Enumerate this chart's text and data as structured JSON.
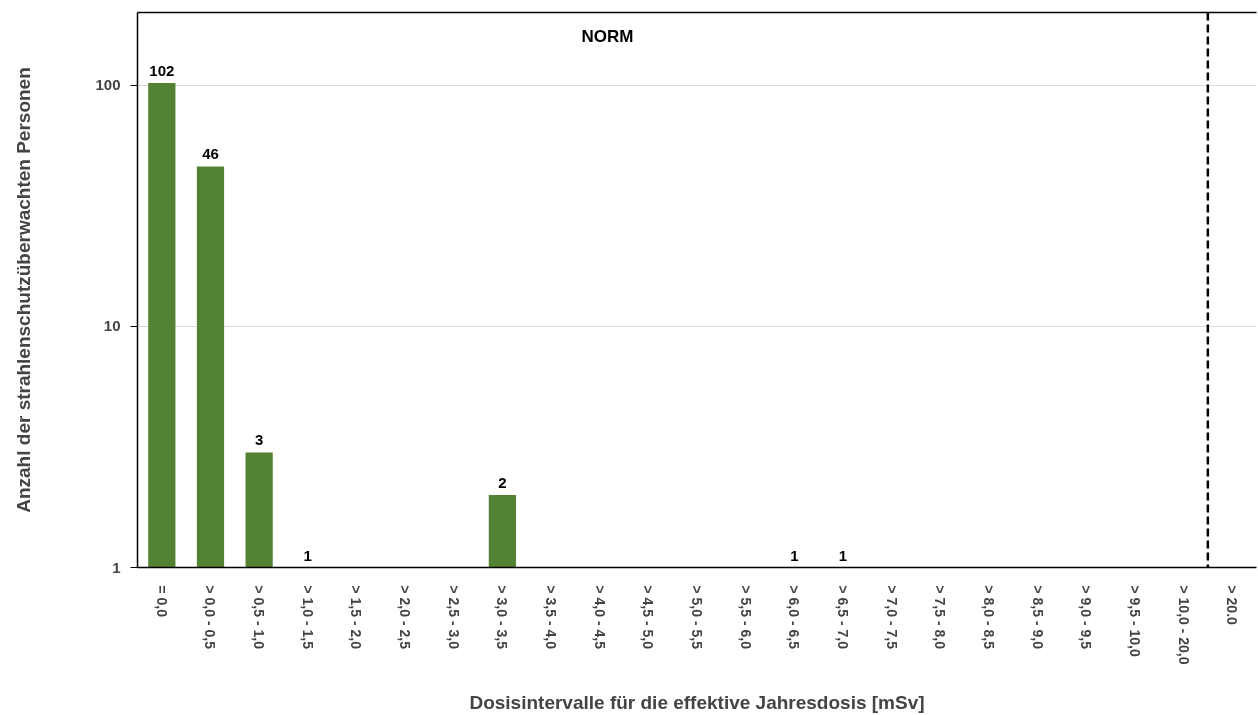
{
  "chart_data": {
    "type": "bar",
    "title": "NORM",
    "xlabel": "Dosisintervalle für die effektive Jahresdosis [mSv]",
    "ylabel": "Anzahl der strahlenschutzüberwachten Personen",
    "categories": [
      "= 0,0",
      "> 0,0 - 0,5",
      "> 0,5 - 1,0",
      "> 1,0 - 1,5",
      "> 1,5 - 2,0",
      "> 2,0 - 2,5",
      "> 2,5 - 3,0",
      "> 3,0 - 3,5",
      "> 3,5 - 4,0",
      "> 4,0 - 4,5",
      "> 4,5 - 5,0",
      "> 5,0 - 5,5",
      "> 5,5 - 6,0",
      "> 6,0 - 6,5",
      "> 6,5 - 7,0",
      "> 7,0 - 7,5",
      "> 7,5 - 8,0",
      "> 8,0 - 8,5",
      "> 8,5 - 9,0",
      "> 9,0 - 9,5",
      "> 9,5 - 10,0",
      "> 10,0 - 20,0",
      "> 20.0"
    ],
    "values": [
      102,
      46,
      3,
      1,
      null,
      null,
      null,
      2,
      null,
      null,
      null,
      null,
      null,
      1,
      1,
      null,
      null,
      null,
      null,
      null,
      null,
      null,
      null
    ],
    "color": "#548235",
    "data_labels": true,
    "log": true,
    "ylim": [
      1,
      200
    ],
    "yticks": [
      1,
      10,
      100
    ],
    "grid": "y",
    "ref_lines": [
      {
        "axis": "x",
        "value": "> 20.0",
        "color": "#000000",
        "line_style": "dashed"
      }
    ]
  }
}
